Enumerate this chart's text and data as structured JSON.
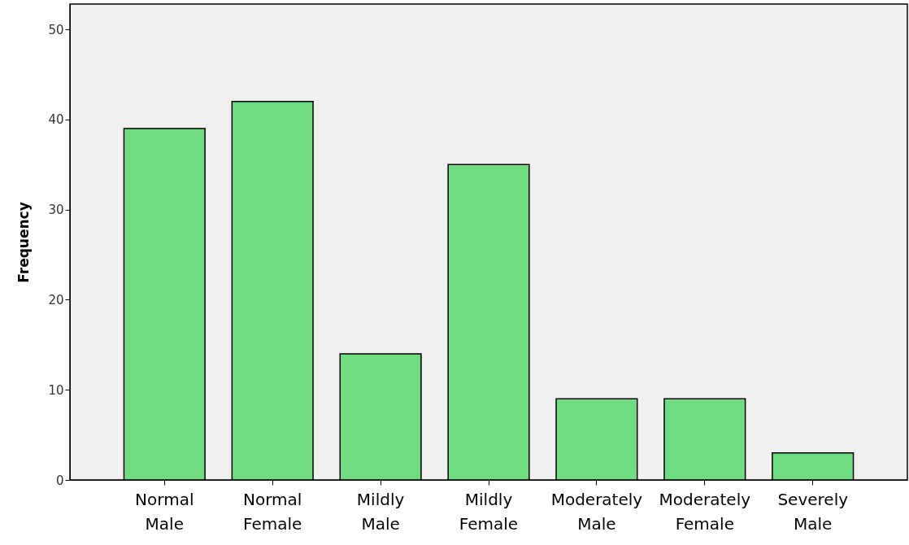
{
  "chart_data": {
    "type": "bar",
    "ylabel": "Frequency",
    "categories": [
      "Normal Male",
      "Normal Female",
      "Mildly Male",
      "Mildly Female",
      "Moderately Male",
      "Moderately Female",
      "Severely Male"
    ],
    "values": [
      39,
      42,
      14,
      35,
      9,
      9,
      3
    ],
    "color": "#6fdc82",
    "ylim": [
      0,
      52.8
    ],
    "yticks": [
      0,
      10,
      20,
      30,
      40,
      50
    ],
    "grid": false
  }
}
